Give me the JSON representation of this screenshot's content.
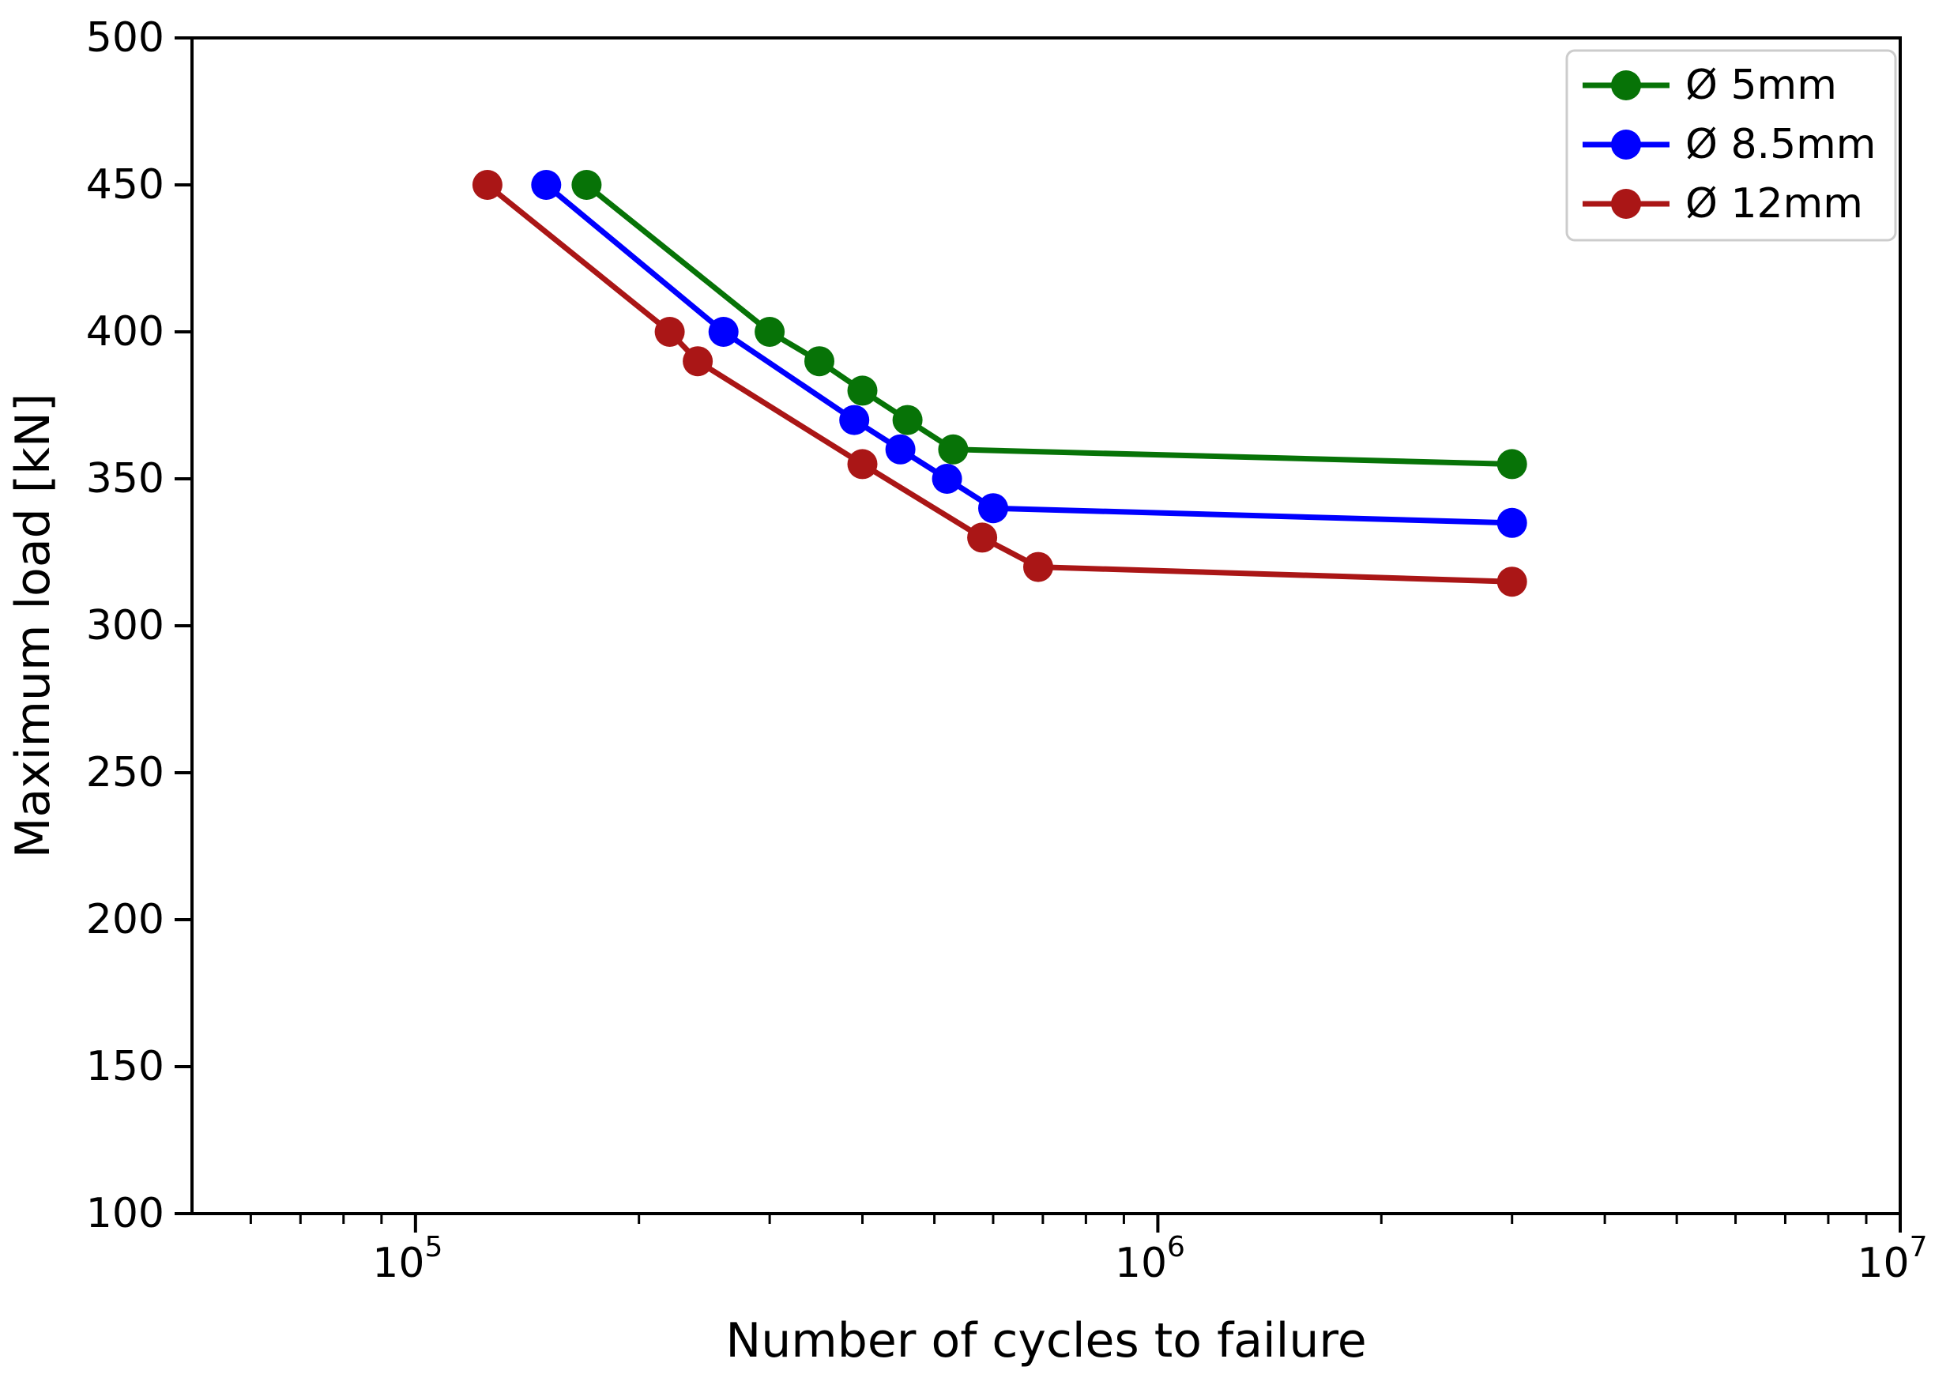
{
  "chart_data": {
    "type": "line",
    "title": "",
    "xlabel": "Number of cycles to failure",
    "ylabel": "Maximum load [kN]",
    "x_scale": "log",
    "y_scale": "linear",
    "xlim": [
      50000,
      10000000
    ],
    "ylim": [
      100,
      500
    ],
    "y_ticks": [
      100,
      150,
      200,
      250,
      300,
      350,
      400,
      450,
      500
    ],
    "x_major_ticks": [
      {
        "value": 100000,
        "label_base": "10",
        "label_exp": "5"
      },
      {
        "value": 1000000,
        "label_base": "10",
        "label_exp": "6"
      },
      {
        "value": 10000000,
        "label_base": "10",
        "label_exp": "7"
      }
    ],
    "grid": false,
    "legend_position": "upper right",
    "axis_color": "#000000",
    "series": [
      {
        "name": "Ø 5mm",
        "color": "#077307",
        "points": [
          [
            170000,
            450
          ],
          [
            300000,
            400
          ],
          [
            350000,
            390
          ],
          [
            400000,
            380
          ],
          [
            460000,
            370
          ],
          [
            530000,
            360
          ],
          [
            3000000,
            355
          ]
        ]
      },
      {
        "name": "Ø 8.5mm",
        "color": "#0000ff",
        "points": [
          [
            150000,
            450
          ],
          [
            260000,
            400
          ],
          [
            390000,
            370
          ],
          [
            450000,
            360
          ],
          [
            520000,
            350
          ],
          [
            600000,
            340
          ],
          [
            3000000,
            335
          ]
        ]
      },
      {
        "name": "Ø 12mm",
        "color": "#aa1616",
        "points": [
          [
            125000,
            450
          ],
          [
            220000,
            400
          ],
          [
            240000,
            390
          ],
          [
            400000,
            355
          ],
          [
            580000,
            330
          ],
          [
            690000,
            320
          ],
          [
            3000000,
            315
          ]
        ]
      }
    ]
  }
}
